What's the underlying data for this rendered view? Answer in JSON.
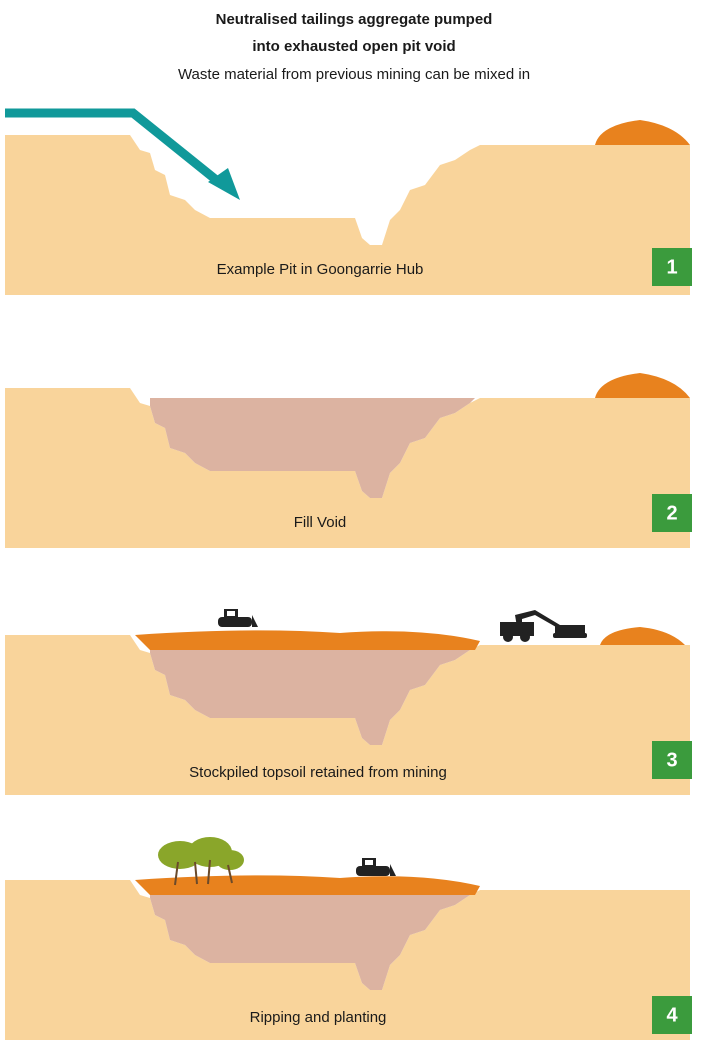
{
  "header": {
    "title": [
      "Neutralised tailings aggregate pumped",
      "into exhausted open pit void"
    ],
    "subtitle": "Waste material from previous mining can be mixed in"
  },
  "panels": [
    {
      "label": "Example Pit in Goongarrie Hub",
      "number": "1"
    },
    {
      "label": "Fill Void",
      "number": "2"
    },
    {
      "label": "Stockpiled topsoil retained from mining",
      "number": "3"
    },
    {
      "label": "Ripping and planting",
      "number": "4"
    }
  ]
}
